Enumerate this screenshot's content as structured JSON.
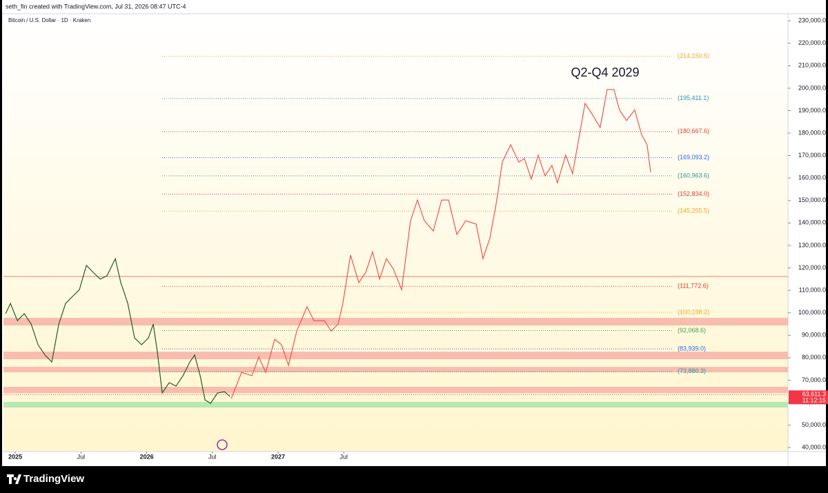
{
  "chart_data": {
    "type": "line",
    "header": "seth_fin created with TradingView.com, Jul 31, 2026 08:47 UTC-4",
    "title": "Bitcoin / U.S. Dollar · 1D · Kraken",
    "annotation": "Q2-Q4 2029",
    "brand": "TradingView",
    "xlim": [
      2024.91,
      2030.88
    ],
    "ylim": [
      38200,
      232500
    ],
    "xticks": [
      2025,
      {
        "value": 2025.5,
        "label": "Jul"
      },
      2026,
      {
        "value": 2026.5,
        "label": "Jul"
      },
      2027,
      {
        "value": 2027.5,
        "label": "Jul"
      }
    ],
    "yticks": [
      {
        "value": 40000,
        "label": "40,000.0"
      },
      {
        "value": 50000,
        "label": "50,000.0"
      },
      {
        "value": 60000,
        "label": "60,000.0"
      },
      {
        "value": 70000,
        "label": "70,000.0"
      },
      {
        "value": 80000,
        "label": "80,000.0"
      },
      {
        "value": 90000,
        "label": "90,000.0"
      },
      {
        "value": 100000,
        "label": "100,000.0"
      },
      {
        "value": 110000,
        "label": "110,000.0"
      },
      {
        "value": 120000,
        "label": "120,000.0"
      },
      {
        "value": 130000,
        "label": "130,000.0"
      },
      {
        "value": 140000,
        "label": "140,000.0"
      },
      {
        "value": 150000,
        "label": "150,000.0"
      },
      {
        "value": 160000,
        "label": "160,000.0"
      },
      {
        "value": 170000,
        "label": "170,000.0"
      },
      {
        "value": 180000,
        "label": "180,000.0"
      },
      {
        "value": 190000,
        "label": "190,000.0"
      },
      {
        "value": 200000,
        "label": "200,000.0"
      },
      {
        "value": 210000,
        "label": "210,000.0"
      },
      {
        "value": 220000,
        "label": "220,000.0"
      },
      {
        "value": 230000,
        "label": "230,000.0"
      }
    ],
    "series": [
      {
        "color": "#1e5e22",
        "x": [
          2024.927,
          2024.963,
          2025.016,
          2025.068,
          2025.121,
          2025.173,
          2025.226,
          2025.278,
          2025.331,
          2025.383,
          2025.436,
          2025.488,
          2025.541,
          2025.593,
          2025.646,
          2025.698,
          2025.761,
          2025.803,
          2025.856,
          2025.908,
          2025.961,
          2026.013,
          2026.05,
          2026.081,
          2026.118,
          2026.171,
          2026.223,
          2026.276,
          2026.328,
          2026.365,
          2026.407,
          2026.444,
          2026.486,
          2026.538,
          2026.591,
          2026.633
        ],
        "values": [
          99600,
          104200,
          96500,
          99600,
          95000,
          85800,
          81200,
          78100,
          95000,
          104200,
          107300,
          110300,
          121100,
          118000,
          115000,
          116500,
          124100,
          113400,
          104200,
          88800,
          85800,
          88800,
          95000,
          82700,
          64300,
          68900,
          67400,
          72000,
          78100,
          81200,
          72000,
          61200,
          59700,
          64300,
          64900,
          62800
        ]
      },
      {
        "color": "#ef5350",
        "x": [
          2026.643,
          2026.722,
          2026.801,
          2026.853,
          2026.906,
          2026.974,
          2027.026,
          2027.079,
          2027.142,
          2027.22,
          2027.273,
          2027.352,
          2027.404,
          2027.457,
          2027.493,
          2027.551,
          2027.614,
          2027.667,
          2027.719,
          2027.772,
          2027.824,
          2027.877,
          2027.94,
          2028.008,
          2028.06,
          2028.113,
          2028.181,
          2028.244,
          2028.297,
          2028.36,
          2028.428,
          2028.507,
          2028.559,
          2028.612,
          2028.664,
          2028.706,
          2028.769,
          2028.832,
          2028.874,
          2028.927,
          2028.979,
          2029.031,
          2029.084,
          2029.126,
          2029.189,
          2029.241,
          2029.294,
          2029.336,
          2029.388,
          2029.451,
          2029.504,
          2029.556,
          2029.598,
          2029.651,
          2029.714,
          2029.766,
          2029.808,
          2029.835
        ],
        "values": [
          61800,
          73500,
          72000,
          80300,
          73500,
          88200,
          85800,
          76600,
          91900,
          102700,
          96500,
          96500,
          91900,
          95000,
          104200,
          125700,
          113400,
          118000,
          127200,
          115000,
          124100,
          119500,
          110300,
          141000,
          150200,
          141000,
          136400,
          150200,
          150200,
          134900,
          141000,
          139500,
          124100,
          133400,
          150200,
          167100,
          174800,
          167100,
          168700,
          159500,
          170200,
          161000,
          165600,
          157900,
          170200,
          162000,
          179400,
          193200,
          188600,
          182500,
          199400,
          199400,
          190300,
          185600,
          190300,
          179400,
          174800,
          162500
        ]
      }
    ],
    "levels": [
      {
        "value": 214150.5,
        "label": "(214,150.5)",
        "color": "#f5a623"
      },
      {
        "value": 195411.1,
        "label": "(195,411.1)",
        "color": "#1e9bb0"
      },
      {
        "value": 180667.6,
        "label": "(180,667.6)",
        "color": "#e53935"
      },
      {
        "value": 169093.2,
        "label": "(169,093.2)",
        "color": "#2962ff"
      },
      {
        "value": 160963.6,
        "label": "(160,963.6)",
        "color": "#22998a"
      },
      {
        "value": 152834.0,
        "label": "(152,834.0)",
        "color": "#e53935"
      },
      {
        "value": 145255.5,
        "label": "(145,255.5)",
        "color": "#f5a623"
      },
      {
        "value": 111772.6,
        "label": "(111,772.6)",
        "color": "#e53935"
      },
      {
        "value": 100198.2,
        "label": "(100,198.2)",
        "color": "#f5a623"
      },
      {
        "value": 92068.6,
        "label": "(92,068.6)",
        "color": "#43a047"
      },
      {
        "value": 83939.0,
        "label": "(83,939.0)",
        "color": "#2962ff"
      },
      {
        "value": 73880.3,
        "label": "(73,880.3)",
        "color": "#1e9bb0"
      }
    ],
    "zones": [
      {
        "range": [
          94370,
          97750
        ],
        "color": "#f7b3a6"
      },
      {
        "range": [
          79330,
          82700
        ],
        "color": "#f7b3a6"
      },
      {
        "range": [
          73500,
          75950
        ],
        "color": "#f7b3a6"
      },
      {
        "range": [
          64300,
          67050
        ],
        "color": "#f7b3a6"
      },
      {
        "range": [
          57850,
          60300
        ],
        "color": "#a8e6a8"
      }
    ],
    "hlines": [
      {
        "value": 116170,
        "color": "#ef7b73"
      }
    ],
    "last_price": {
      "value": 63611.3,
      "label": "63,611.3",
      "color": "#f23645"
    },
    "countdown": "11:12:15"
  }
}
